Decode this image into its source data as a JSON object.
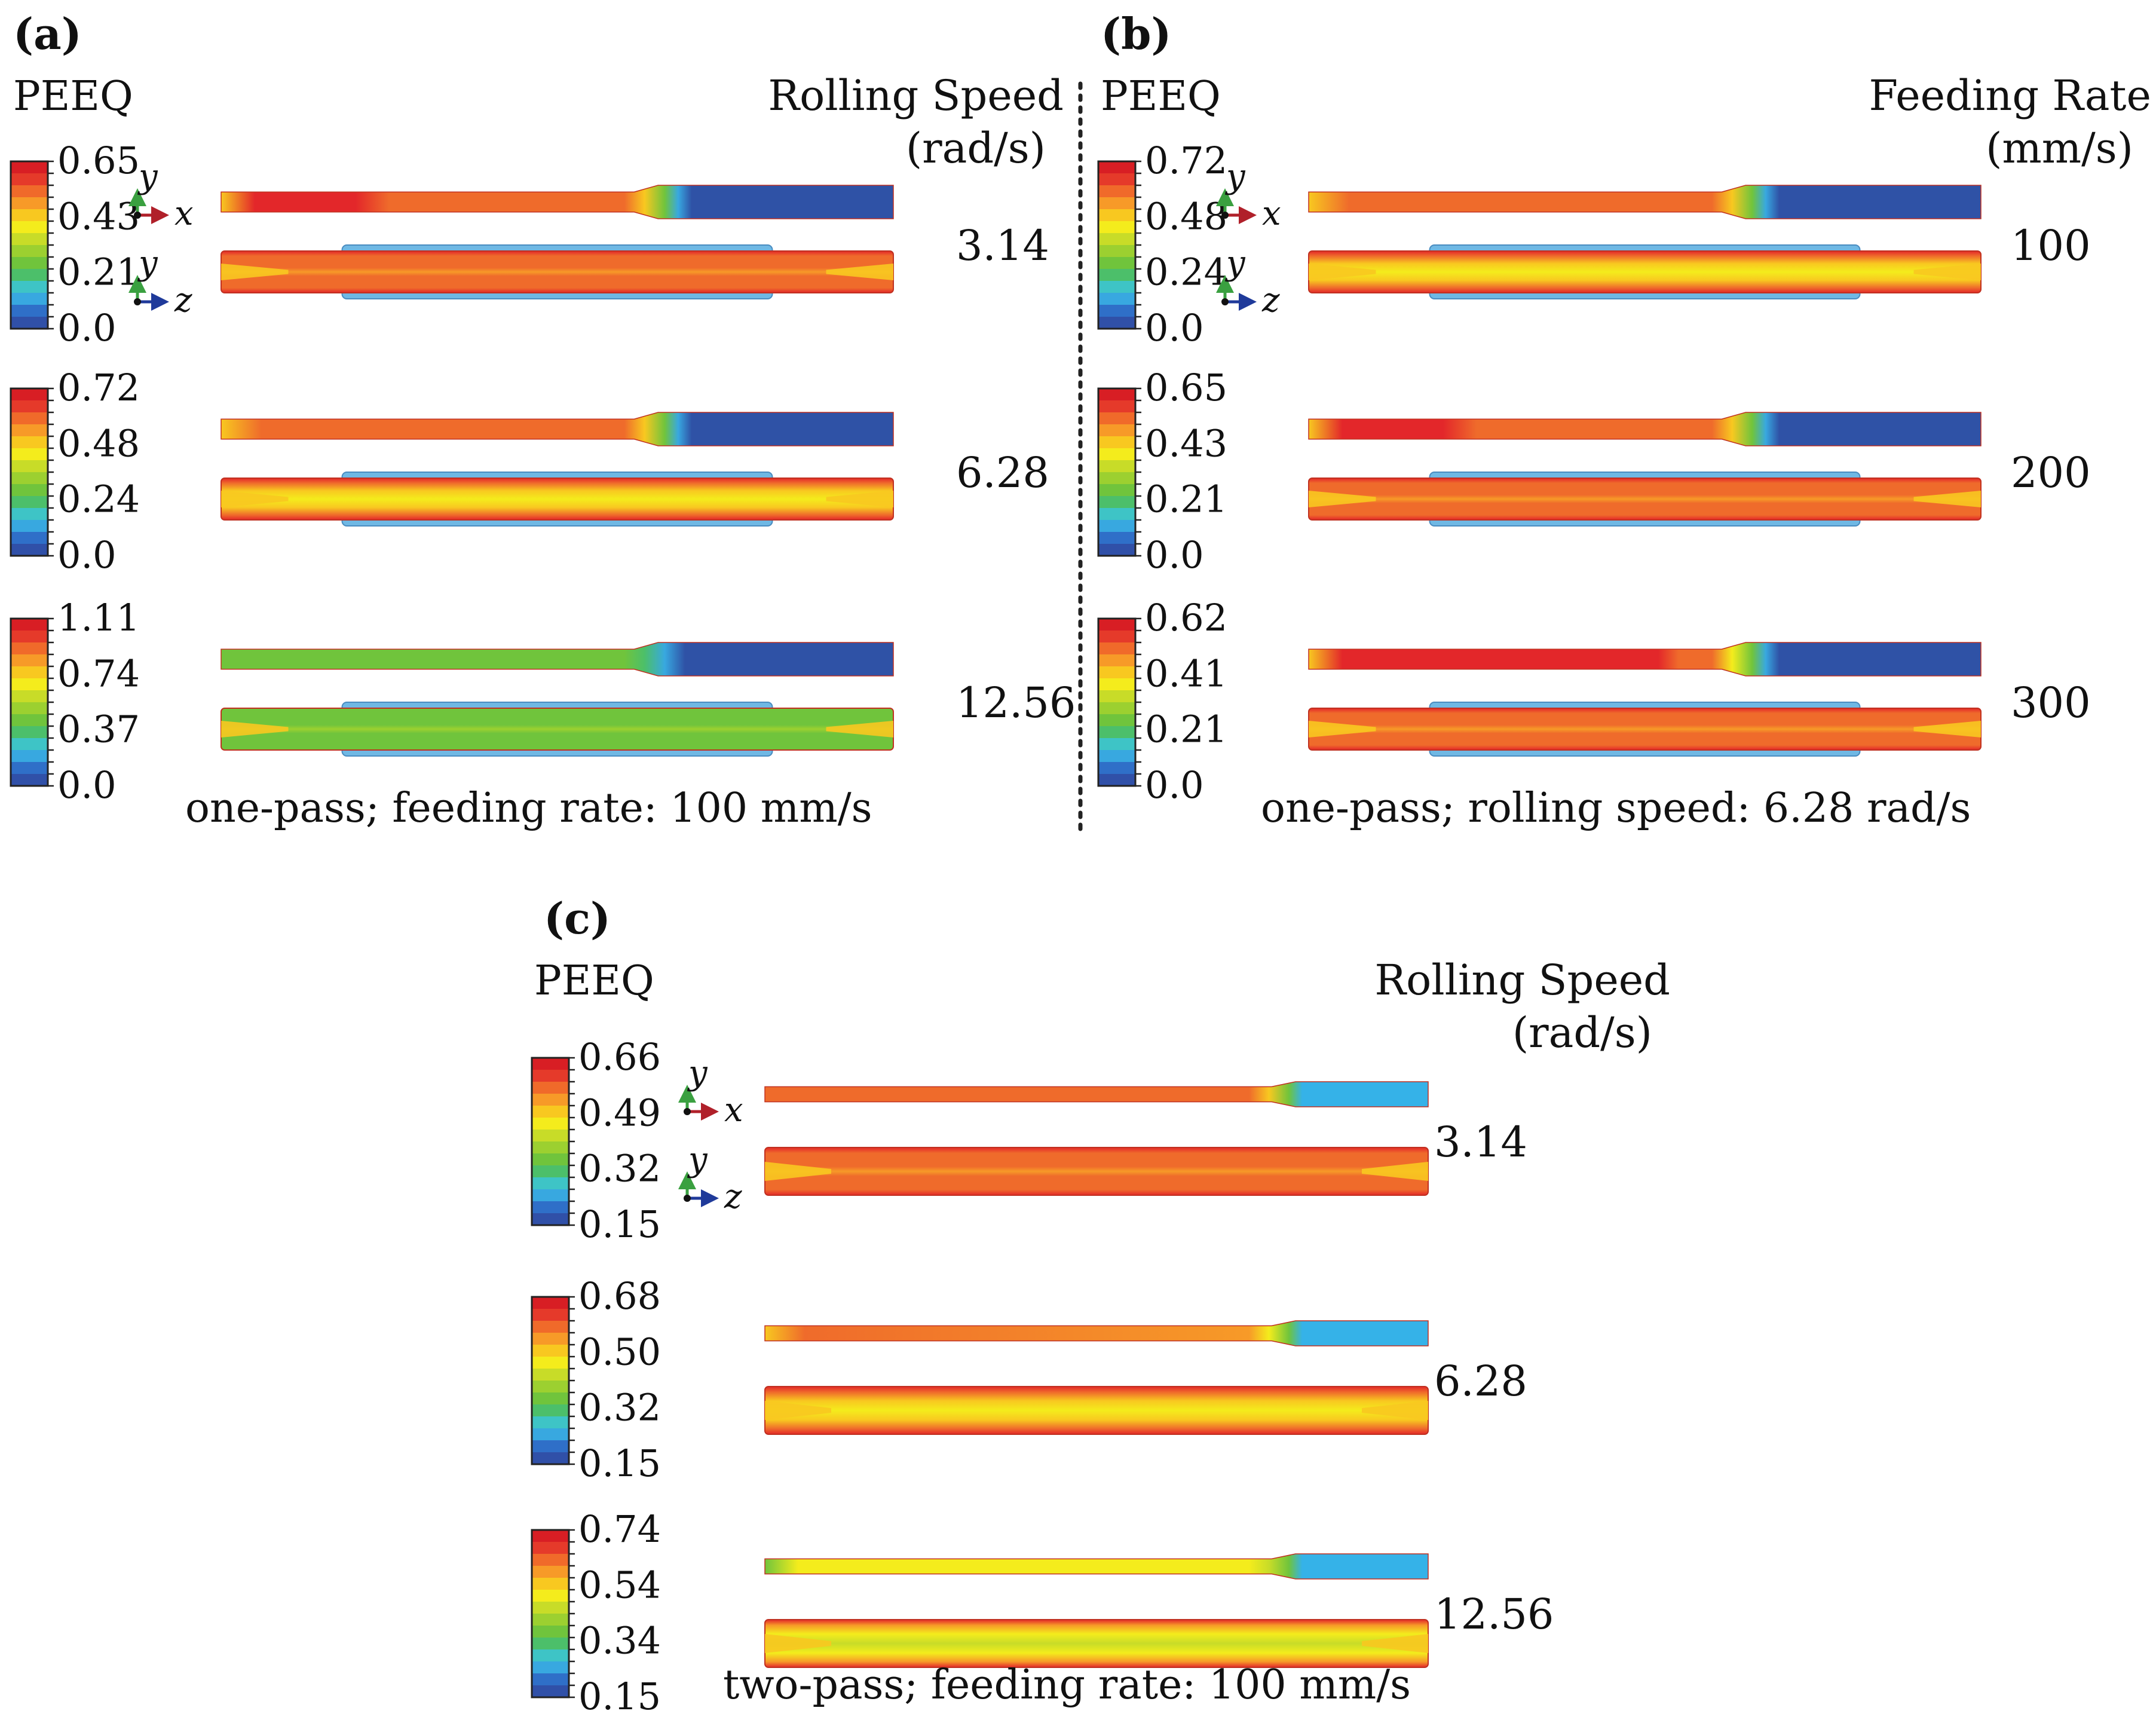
{
  "figure": {
    "colors": {
      "scale": [
        "#3050a8",
        "#2f6fc8",
        "#38a8e0",
        "#3ec4c6",
        "#4cbf6a",
        "#70c43c",
        "#9cd030",
        "#c8dc28",
        "#f4ec1c",
        "#f8c820",
        "#f79a28",
        "#f06a2a",
        "#e53a2a",
        "#d81e24"
      ],
      "blue": "#2f52a6",
      "cyan": "#35b2e8",
      "green": "#7ec53c",
      "yellow": "#f2e31e",
      "orange": "#ef6b2b",
      "red": "#e3272a",
      "dotted_divider": "#222222"
    },
    "panels": [
      {
        "id": "a",
        "label": "(a)",
        "legend_title": "PEEQ",
        "param_title_line1": "Rolling Speed",
        "param_title_line2": "(rad/s)",
        "caption": "one-pass; feeding rate: 100 mm/s",
        "axes": {
          "y": "y",
          "x": "x",
          "z": "z"
        },
        "rows": [
          {
            "param": "3.14",
            "ticks": [
              "0.65",
              "0.43",
              "0.21",
              "0.0"
            ],
            "top_fill": "red-orange",
            "bottom_fill": "orange"
          },
          {
            "param": "6.28",
            "ticks": [
              "0.72",
              "0.48",
              "0.24",
              "0.0"
            ],
            "top_fill": "orange",
            "bottom_fill": "orange-yellow"
          },
          {
            "param": "12.56",
            "ticks": [
              "1.11",
              "0.74",
              "0.37",
              "0.0"
            ],
            "top_fill": "green",
            "bottom_fill": "green"
          }
        ]
      },
      {
        "id": "b",
        "label": "(b)",
        "legend_title": "PEEQ",
        "param_title_line1": "Feeding Rate",
        "param_title_line2": "(mm/s)",
        "caption": "one-pass; rolling speed: 6.28 rad/s",
        "axes": {
          "y": "y",
          "x": "x",
          "z": "z"
        },
        "rows": [
          {
            "param": "100",
            "ticks": [
              "0.72",
              "0.48",
              "0.24",
              "0.0"
            ],
            "top_fill": "orange",
            "bottom_fill": "orange-yellow"
          },
          {
            "param": "200",
            "ticks": [
              "0.65",
              "0.43",
              "0.21",
              "0.0"
            ],
            "top_fill": "red-orange",
            "bottom_fill": "orange"
          },
          {
            "param": "300",
            "ticks": [
              "0.62",
              "0.41",
              "0.21",
              "0.0"
            ],
            "top_fill": "red",
            "bottom_fill": "orange"
          }
        ]
      },
      {
        "id": "c",
        "label": "(c)",
        "legend_title": "PEEQ",
        "param_title_line1": "Rolling Speed",
        "param_title_line2": "(rad/s)",
        "caption": "two-pass; feeding rate: 100 mm/s",
        "axes": {
          "y": "y",
          "x": "x",
          "z": "z"
        },
        "rows": [
          {
            "param": "3.14",
            "ticks": [
              "0.66",
              "0.49",
              "0.32",
              "0.15"
            ],
            "top_fill": "orange",
            "bottom_fill": "orange"
          },
          {
            "param": "6.28",
            "ticks": [
              "0.68",
              "0.50",
              "0.32",
              "0.15"
            ],
            "top_fill": "orange-yellow",
            "bottom_fill": "orange-yellow"
          },
          {
            "param": "12.56",
            "ticks": [
              "0.74",
              "0.54",
              "0.34",
              "0.15"
            ],
            "top_fill": "yellow",
            "bottom_fill": "yellow"
          }
        ]
      }
    ]
  }
}
